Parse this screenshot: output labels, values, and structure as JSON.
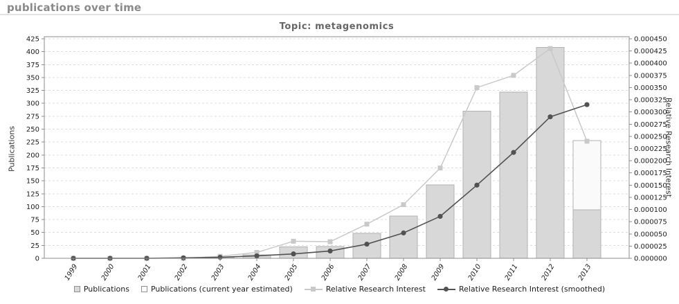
{
  "page": {
    "header": "publications over time"
  },
  "chart": {
    "title": "Topic: metagenomics",
    "legend": [
      {
        "label": "Publications",
        "swatch": "bar-solid"
      },
      {
        "label": "Publications (current year estimated)",
        "swatch": "bar-estimated"
      },
      {
        "label": "Relative Research Interest",
        "swatch": "line-square"
      },
      {
        "label": "Relative Research Interest (smoothed)",
        "swatch": "line-circle"
      }
    ],
    "colors": {
      "header_text": "#8a8a8a",
      "title_text": "#666666",
      "bar_fill": "#d8d8d8",
      "bar_border": "#b2b2b2",
      "estimated_fill": "#fafafa",
      "rri_line": "#c9c9c9",
      "smoothed_line": "#525252",
      "grid": "#dcdcdc",
      "plot_border": "#8c8c8c",
      "tick_text": "#1c1c1c"
    }
  },
  "chart_data": {
    "type": "bar",
    "title": "Topic: metagenomics",
    "categories": [
      "1999",
      "2000",
      "2001",
      "2002",
      "2003",
      "2004",
      "2005",
      "2006",
      "2007",
      "2008",
      "2009",
      "2010",
      "2011",
      "2012",
      "2013"
    ],
    "series": [
      {
        "name": "Publications",
        "type": "bar",
        "axis": "left",
        "values": [
          0,
          0,
          0,
          0,
          2,
          7,
          22,
          23,
          48,
          82,
          142,
          285,
          322,
          408,
          94
        ]
      },
      {
        "name": "Publications (current year estimated)",
        "type": "bar",
        "axis": "left",
        "values": [
          null,
          null,
          null,
          null,
          null,
          null,
          null,
          null,
          null,
          null,
          null,
          null,
          null,
          null,
          228
        ]
      },
      {
        "name": "Relative Research Interest",
        "type": "line",
        "marker": "square",
        "axis": "right",
        "values": [
          0,
          0,
          0,
          0,
          4e-06,
          1.2e-05,
          3.5e-05,
          3.4e-05,
          7e-05,
          0.00011,
          0.000185,
          0.00035,
          0.000375,
          0.00043,
          0.00024
        ]
      },
      {
        "name": "Relative Research Interest (smoothed)",
        "type": "line",
        "marker": "circle",
        "axis": "right",
        "values": [
          0,
          0,
          0,
          1e-06,
          2e-06,
          5e-06,
          9e-06,
          1.5e-05,
          2.9e-05,
          5.2e-05,
          8.6e-05,
          0.00015,
          0.000217,
          0.00029,
          0.000315
        ]
      }
    ],
    "left_axis": {
      "label": "Publications",
      "min": 0,
      "max": 425,
      "step": 25
    },
    "right_axis": {
      "label": "Relative Research Interest",
      "min": 0,
      "max": 0.00045,
      "step": 2.5e-05,
      "decimals": 6
    },
    "grid": "horizontal-dashed",
    "legend_position": "bottom"
  }
}
